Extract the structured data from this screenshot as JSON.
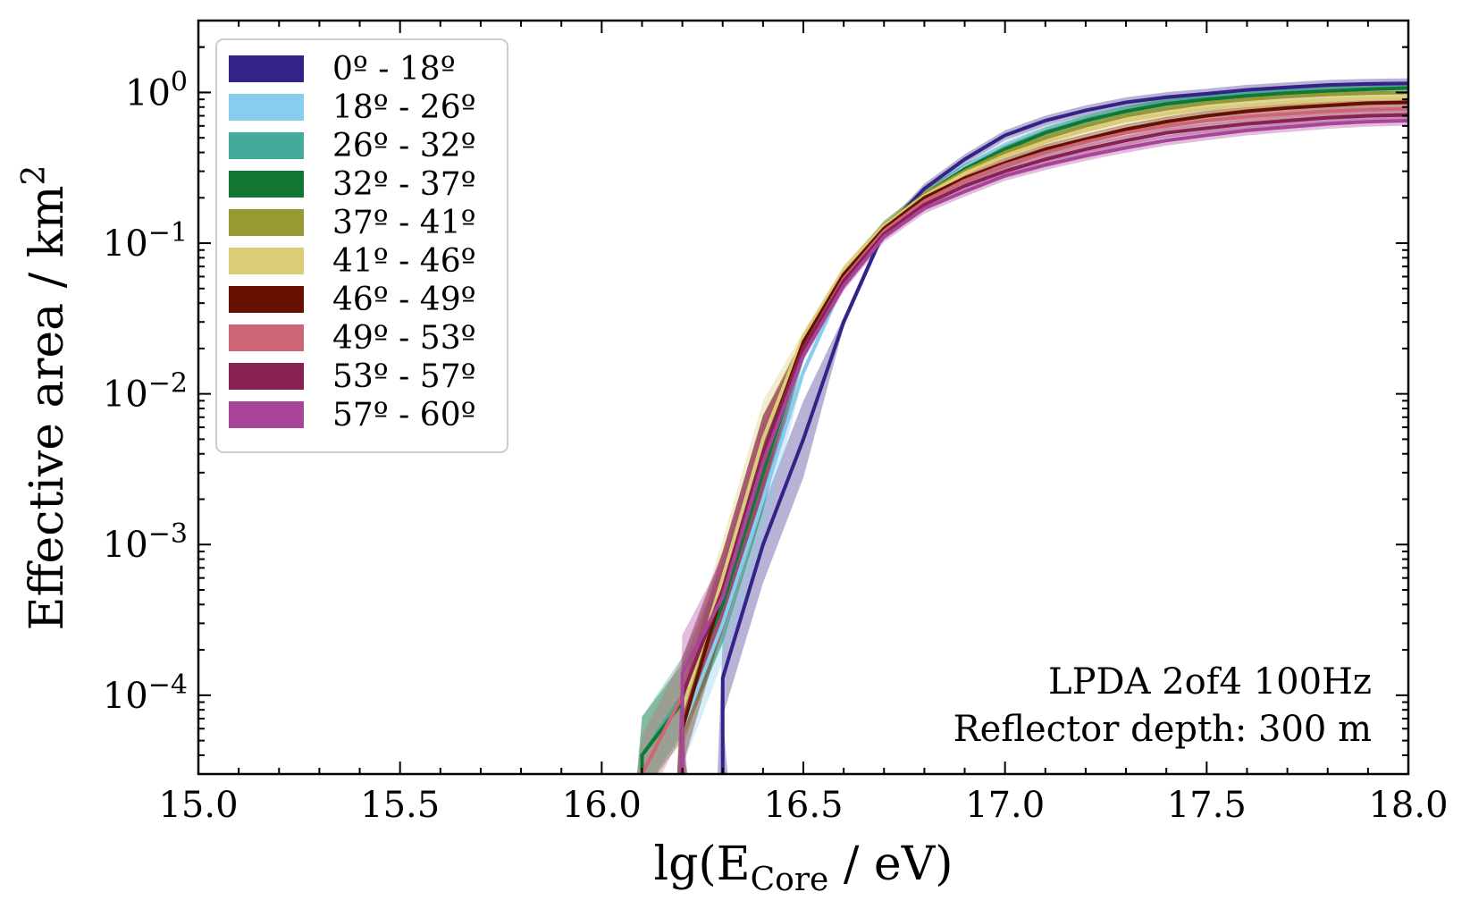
{
  "chart_data": {
    "type": "line",
    "title": "",
    "xlabel": "lg(E",
    "xlabel_sub": "Core",
    "xlabel_tail": " / eV)",
    "ylabel": "Effective area / km",
    "ylabel_sup": "2",
    "xlim": [
      15.0,
      18.0
    ],
    "ylim": [
      3e-05,
      3.0
    ],
    "yscale": "log",
    "x_ticks": [
      15.0,
      15.5,
      16.0,
      16.5,
      17.0,
      17.5,
      18.0
    ],
    "x_tick_labels": [
      "15.0",
      "15.5",
      "16.0",
      "16.5",
      "17.0",
      "17.5",
      "18.0"
    ],
    "y_ticks": [
      0,
      -1,
      -2,
      -3,
      -4
    ],
    "y_tick_labels": [
      {
        "base": "10",
        "exp": "0"
      },
      {
        "base": "10",
        "exp": "−1"
      },
      {
        "base": "10",
        "exp": "−2"
      },
      {
        "base": "10",
        "exp": "−3"
      },
      {
        "base": "10",
        "exp": "−4"
      }
    ],
    "annotations": [
      "LPDA 2of4 100Hz",
      "Reflector depth: 300 m"
    ],
    "legend_position": "top-left",
    "x": [
      16.1,
      16.2,
      16.3,
      16.4,
      16.5,
      16.6,
      16.7,
      16.8,
      16.9,
      17.0,
      17.1,
      17.2,
      17.3,
      17.4,
      17.5,
      17.6,
      17.7,
      17.8,
      17.9,
      18.0
    ],
    "series": [
      {
        "name": "0º - 18º",
        "color": "#332288",
        "values": [
          null,
          null,
          0.00013,
          0.001,
          0.005,
          0.03,
          0.12,
          0.23,
          0.36,
          0.52,
          0.65,
          0.76,
          0.86,
          0.93,
          0.98,
          1.04,
          1.08,
          1.12,
          1.14,
          1.15
        ]
      },
      {
        "name": "18º - 26º",
        "color": "#88CCEE",
        "values": [
          null,
          6e-05,
          0.0003,
          0.002,
          0.014,
          0.055,
          0.125,
          0.21,
          0.32,
          0.44,
          0.56,
          0.66,
          0.76,
          0.84,
          0.9,
          0.95,
          0.99,
          1.02,
          1.04,
          1.05
        ]
      },
      {
        "name": "26º - 32º",
        "color": "#44AA99",
        "values": [
          4e-05,
          0.0001,
          0.0004,
          0.003,
          0.018,
          0.06,
          0.13,
          0.21,
          0.31,
          0.43,
          0.55,
          0.66,
          0.76,
          0.85,
          0.92,
          0.97,
          1.01,
          1.04,
          1.06,
          1.08
        ]
      },
      {
        "name": "32º - 37º",
        "color": "#117733",
        "values": [
          4e-05,
          9e-05,
          0.0004,
          0.003,
          0.02,
          0.062,
          0.13,
          0.21,
          0.31,
          0.42,
          0.54,
          0.65,
          0.75,
          0.84,
          0.9,
          0.95,
          0.99,
          1.02,
          1.05,
          1.07
        ]
      },
      {
        "name": "37º - 41º",
        "color": "#999933",
        "values": [
          null,
          8e-05,
          0.0005,
          0.004,
          0.022,
          0.065,
          0.13,
          0.21,
          0.3,
          0.4,
          0.5,
          0.6,
          0.7,
          0.78,
          0.85,
          0.9,
          0.94,
          0.97,
          0.99,
          1.0
        ]
      },
      {
        "name": "41º - 46º",
        "color": "#DDCC77",
        "values": [
          null,
          8e-05,
          0.0006,
          0.005,
          0.024,
          0.066,
          0.13,
          0.205,
          0.29,
          0.38,
          0.47,
          0.56,
          0.65,
          0.72,
          0.78,
          0.82,
          0.86,
          0.89,
          0.91,
          0.92
        ]
      },
      {
        "name": "46º - 49º",
        "color": "#661100",
        "values": [
          null,
          6e-05,
          0.0005,
          0.004,
          0.022,
          0.062,
          0.125,
          0.2,
          0.27,
          0.34,
          0.42,
          0.49,
          0.57,
          0.64,
          0.7,
          0.75,
          0.79,
          0.82,
          0.85,
          0.86
        ]
      },
      {
        "name": "49º - 53º",
        "color": "#CC6677",
        "values": [
          3e-05,
          0.0001,
          0.0005,
          0.004,
          0.02,
          0.058,
          0.12,
          0.19,
          0.26,
          0.33,
          0.4,
          0.47,
          0.54,
          0.6,
          0.65,
          0.69,
          0.72,
          0.75,
          0.77,
          0.78
        ]
      },
      {
        "name": "53º - 57º",
        "color": "#882255",
        "values": [
          null,
          0.0001,
          0.0005,
          0.004,
          0.02,
          0.056,
          0.115,
          0.18,
          0.24,
          0.3,
          0.36,
          0.42,
          0.48,
          0.54,
          0.58,
          0.62,
          0.65,
          0.68,
          0.7,
          0.71
        ]
      },
      {
        "name": "57º - 60º",
        "color": "#AA4499",
        "values": [
          null,
          0.00014,
          0.00045,
          0.0035,
          0.018,
          0.052,
          0.11,
          0.17,
          0.22,
          0.28,
          0.33,
          0.38,
          0.43,
          0.48,
          0.52,
          0.56,
          0.59,
          0.62,
          0.64,
          0.65
        ]
      }
    ]
  }
}
